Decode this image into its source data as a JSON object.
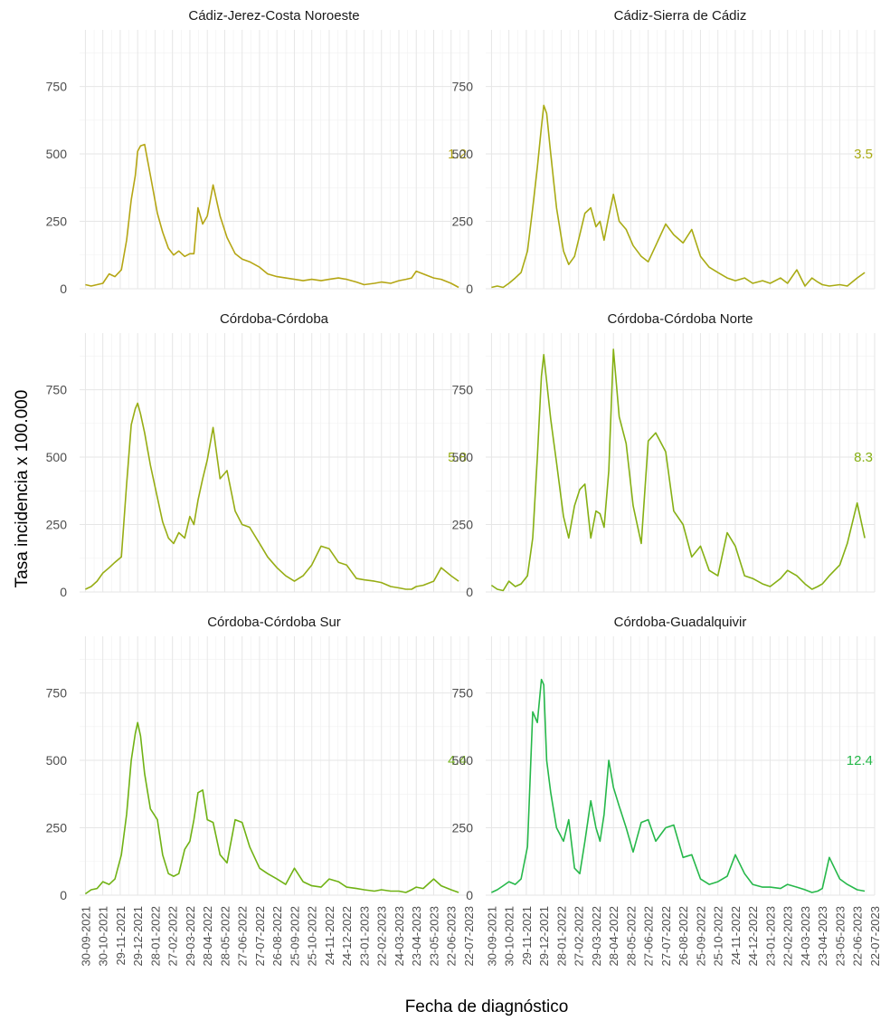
{
  "chart_data": {
    "type": "line",
    "xlabel": "Fecha de diagnóstico",
    "ylabel": "Tasa incidencia x 100.000",
    "ylim": [
      0,
      960
    ],
    "y_ticks": [
      0,
      250,
      500,
      750
    ],
    "x_range": [
      "2021-09-20",
      "2023-07-22"
    ],
    "x_tick_labels": [
      "30-09-2021",
      "30-10-2021",
      "29-11-2021",
      "29-12-2021",
      "28-01-2022",
      "27-02-2022",
      "29-03-2022",
      "28-04-2022",
      "28-05-2022",
      "27-06-2022",
      "27-07-2022",
      "26-08-2022",
      "25-09-2022",
      "25-10-2022",
      "24-11-2022",
      "24-12-2022",
      "23-01-2023",
      "22-02-2023",
      "24-03-2023",
      "23-04-2023",
      "23-05-2023",
      "22-06-2023",
      "22-07-2023"
    ],
    "x_tick_dates": [
      "2021-09-30",
      "2021-10-30",
      "2021-11-29",
      "2021-12-29",
      "2022-01-28",
      "2022-02-27",
      "2022-03-29",
      "2022-04-28",
      "2022-05-28",
      "2022-06-27",
      "2022-07-27",
      "2022-08-26",
      "2022-09-25",
      "2022-10-25",
      "2022-11-24",
      "2022-12-24",
      "2023-01-23",
      "2023-02-22",
      "2023-03-24",
      "2023-04-23",
      "2023-05-23",
      "2023-06-22",
      "2023-07-22"
    ],
    "grid": true,
    "legend": "none",
    "facets": [
      {
        "title": "Cádiz-Jerez-Costa Noroeste",
        "annotation": "1.2",
        "color": "#b5a614",
        "x": [
          "2021-09-30",
          "2021-10-10",
          "2021-10-20",
          "2021-10-30",
          "2021-11-10",
          "2021-11-20",
          "2021-12-01",
          "2021-12-10",
          "2021-12-18",
          "2021-12-25",
          "2021-12-29",
          "2022-01-03",
          "2022-01-10",
          "2022-01-20",
          "2022-02-01",
          "2022-02-10",
          "2022-02-20",
          "2022-03-01",
          "2022-03-10",
          "2022-03-20",
          "2022-03-29",
          "2022-04-05",
          "2022-04-12",
          "2022-04-20",
          "2022-04-28",
          "2022-05-08",
          "2022-05-20",
          "2022-06-01",
          "2022-06-15",
          "2022-06-27",
          "2022-07-10",
          "2022-07-27",
          "2022-08-10",
          "2022-08-26",
          "2022-09-10",
          "2022-09-25",
          "2022-10-10",
          "2022-10-25",
          "2022-11-10",
          "2022-11-24",
          "2022-12-10",
          "2022-12-24",
          "2023-01-10",
          "2023-01-23",
          "2023-02-10",
          "2023-02-22",
          "2023-03-10",
          "2023-03-24",
          "2023-04-05",
          "2023-04-15",
          "2023-04-23",
          "2023-05-05",
          "2023-05-23",
          "2023-06-05",
          "2023-06-22",
          "2023-07-05"
        ],
        "y": [
          15,
          10,
          15,
          20,
          55,
          45,
          70,
          180,
          330,
          420,
          510,
          530,
          535,
          420,
          280,
          210,
          150,
          125,
          140,
          120,
          130,
          130,
          300,
          240,
          270,
          385,
          270,
          190,
          130,
          110,
          100,
          80,
          55,
          45,
          40,
          35,
          30,
          35,
          30,
          35,
          40,
          35,
          25,
          15,
          20,
          25,
          20,
          30,
          35,
          40,
          65,
          55,
          40,
          35,
          20,
          5
        ]
      },
      {
        "title": "Cádiz-Sierra de Cádiz",
        "annotation": "3.5",
        "color": "#a9ab14",
        "x": [
          "2021-09-30",
          "2021-10-10",
          "2021-10-20",
          "2021-10-30",
          "2021-11-10",
          "2021-11-20",
          "2021-12-01",
          "2021-12-10",
          "2021-12-18",
          "2021-12-25",
          "2021-12-29",
          "2022-01-03",
          "2022-01-10",
          "2022-01-20",
          "2022-02-01",
          "2022-02-10",
          "2022-02-20",
          "2022-03-01",
          "2022-03-10",
          "2022-03-20",
          "2022-03-29",
          "2022-04-05",
          "2022-04-12",
          "2022-04-20",
          "2022-04-28",
          "2022-05-08",
          "2022-05-20",
          "2022-06-01",
          "2022-06-15",
          "2022-06-27",
          "2022-07-10",
          "2022-07-27",
          "2022-08-10",
          "2022-08-26",
          "2022-09-10",
          "2022-09-25",
          "2022-10-10",
          "2022-10-25",
          "2022-11-10",
          "2022-11-24",
          "2022-12-10",
          "2022-12-24",
          "2023-01-10",
          "2023-01-23",
          "2023-02-10",
          "2023-02-22",
          "2023-03-10",
          "2023-03-24",
          "2023-04-05",
          "2023-04-15",
          "2023-04-23",
          "2023-05-05",
          "2023-05-23",
          "2023-06-05",
          "2023-06-22",
          "2023-07-05"
        ],
        "y": [
          5,
          10,
          5,
          20,
          40,
          60,
          140,
          300,
          450,
          600,
          680,
          650,
          500,
          300,
          140,
          90,
          120,
          200,
          280,
          300,
          230,
          250,
          180,
          270,
          350,
          250,
          220,
          160,
          120,
          100,
          160,
          240,
          200,
          170,
          220,
          120,
          80,
          60,
          40,
          30,
          40,
          20,
          30,
          20,
          40,
          20,
          70,
          10,
          40,
          25,
          15,
          10,
          15,
          10,
          40,
          60
        ]
      },
      {
        "title": "Córdoba-Córdoba",
        "annotation": "5.8",
        "color": "#97ad14",
        "x": [
          "2021-09-30",
          "2021-10-10",
          "2021-10-20",
          "2021-10-30",
          "2021-11-10",
          "2021-11-20",
          "2021-12-01",
          "2021-12-10",
          "2021-12-18",
          "2021-12-25",
          "2021-12-29",
          "2022-01-03",
          "2022-01-10",
          "2022-01-20",
          "2022-02-01",
          "2022-02-10",
          "2022-02-20",
          "2022-03-01",
          "2022-03-10",
          "2022-03-20",
          "2022-03-29",
          "2022-04-05",
          "2022-04-12",
          "2022-04-20",
          "2022-04-28",
          "2022-05-08",
          "2022-05-20",
          "2022-06-01",
          "2022-06-15",
          "2022-06-27",
          "2022-07-10",
          "2022-07-27",
          "2022-08-10",
          "2022-08-26",
          "2022-09-10",
          "2022-09-25",
          "2022-10-10",
          "2022-10-25",
          "2022-11-10",
          "2022-11-24",
          "2022-12-10",
          "2022-12-24",
          "2023-01-10",
          "2023-01-23",
          "2023-02-10",
          "2023-02-22",
          "2023-03-10",
          "2023-03-24",
          "2023-04-05",
          "2023-04-15",
          "2023-04-23",
          "2023-05-05",
          "2023-05-23",
          "2023-06-05",
          "2023-06-22",
          "2023-07-05"
        ],
        "y": [
          10,
          20,
          40,
          70,
          90,
          110,
          130,
          400,
          620,
          680,
          700,
          660,
          590,
          470,
          350,
          260,
          200,
          180,
          220,
          200,
          280,
          250,
          340,
          420,
          490,
          610,
          420,
          450,
          300,
          250,
          240,
          180,
          130,
          90,
          60,
          40,
          60,
          100,
          170,
          160,
          110,
          100,
          50,
          45,
          40,
          35,
          20,
          15,
          10,
          10,
          20,
          25,
          40,
          90,
          60,
          40
        ]
      },
      {
        "title": "Córdoba-Córdoba Norte",
        "annotation": "8.3",
        "color": "#86b014",
        "x": [
          "2021-09-30",
          "2021-10-10",
          "2021-10-20",
          "2021-10-30",
          "2021-11-10",
          "2021-11-20",
          "2021-12-01",
          "2021-12-10",
          "2021-12-18",
          "2021-12-25",
          "2021-12-29",
          "2022-01-03",
          "2022-01-10",
          "2022-01-20",
          "2022-02-01",
          "2022-02-10",
          "2022-02-20",
          "2022-03-01",
          "2022-03-10",
          "2022-03-20",
          "2022-03-29",
          "2022-04-05",
          "2022-04-12",
          "2022-04-20",
          "2022-04-28",
          "2022-05-08",
          "2022-05-20",
          "2022-06-01",
          "2022-06-15",
          "2022-06-27",
          "2022-07-10",
          "2022-07-27",
          "2022-08-10",
          "2022-08-26",
          "2022-09-10",
          "2022-09-25",
          "2022-10-10",
          "2022-10-25",
          "2022-11-10",
          "2022-11-24",
          "2022-12-10",
          "2022-12-24",
          "2023-01-10",
          "2023-01-23",
          "2023-02-10",
          "2023-02-22",
          "2023-03-10",
          "2023-03-24",
          "2023-04-05",
          "2023-04-15",
          "2023-04-23",
          "2023-05-05",
          "2023-05-23",
          "2023-06-05",
          "2023-06-22",
          "2023-07-05"
        ],
        "y": [
          25,
          10,
          5,
          40,
          20,
          30,
          60,
          200,
          500,
          800,
          880,
          780,
          640,
          480,
          280,
          200,
          320,
          380,
          400,
          200,
          300,
          290,
          240,
          450,
          900,
          650,
          550,
          320,
          180,
          560,
          590,
          520,
          300,
          250,
          130,
          170,
          80,
          60,
          220,
          170,
          60,
          50,
          30,
          20,
          50,
          80,
          60,
          30,
          10,
          20,
          30,
          60,
          100,
          180,
          330,
          200
        ]
      },
      {
        "title": "Córdoba-Córdoba Sur",
        "annotation": "4.4",
        "color": "#70b214",
        "x": [
          "2021-09-30",
          "2021-10-10",
          "2021-10-20",
          "2021-10-30",
          "2021-11-10",
          "2021-11-20",
          "2021-12-01",
          "2021-12-10",
          "2021-12-18",
          "2021-12-25",
          "2021-12-29",
          "2022-01-03",
          "2022-01-10",
          "2022-01-20",
          "2022-02-01",
          "2022-02-10",
          "2022-02-20",
          "2022-03-01",
          "2022-03-10",
          "2022-03-20",
          "2022-03-29",
          "2022-04-05",
          "2022-04-12",
          "2022-04-20",
          "2022-04-28",
          "2022-05-08",
          "2022-05-20",
          "2022-06-01",
          "2022-06-15",
          "2022-06-27",
          "2022-07-10",
          "2022-07-27",
          "2022-08-10",
          "2022-08-26",
          "2022-09-10",
          "2022-09-25",
          "2022-10-10",
          "2022-10-25",
          "2022-11-10",
          "2022-11-24",
          "2022-12-10",
          "2022-12-24",
          "2023-01-10",
          "2023-01-23",
          "2023-02-10",
          "2023-02-22",
          "2023-03-10",
          "2023-03-24",
          "2023-04-05",
          "2023-04-15",
          "2023-04-23",
          "2023-05-05",
          "2023-05-23",
          "2023-06-05",
          "2023-06-22",
          "2023-07-05"
        ],
        "y": [
          5,
          20,
          25,
          50,
          40,
          60,
          150,
          300,
          500,
          600,
          640,
          590,
          450,
          320,
          280,
          150,
          80,
          70,
          80,
          170,
          200,
          280,
          380,
          390,
          280,
          270,
          150,
          120,
          280,
          270,
          180,
          100,
          80,
          60,
          40,
          100,
          50,
          35,
          30,
          60,
          50,
          30,
          25,
          20,
          15,
          20,
          15,
          15,
          10,
          20,
          30,
          25,
          60,
          35,
          20,
          10
        ]
      },
      {
        "title": "Córdoba-Guadalquivir",
        "annotation": "12.4",
        "color": "#26b84a",
        "x": [
          "2021-09-30",
          "2021-10-10",
          "2021-10-20",
          "2021-10-30",
          "2021-11-10",
          "2021-11-20",
          "2021-12-01",
          "2021-12-10",
          "2021-12-18",
          "2021-12-25",
          "2021-12-29",
          "2022-01-03",
          "2022-01-10",
          "2022-01-20",
          "2022-02-01",
          "2022-02-10",
          "2022-02-20",
          "2022-03-01",
          "2022-03-10",
          "2022-03-20",
          "2022-03-29",
          "2022-04-05",
          "2022-04-12",
          "2022-04-20",
          "2022-04-28",
          "2022-05-08",
          "2022-05-20",
          "2022-06-01",
          "2022-06-15",
          "2022-06-27",
          "2022-07-10",
          "2022-07-27",
          "2022-08-10",
          "2022-08-26",
          "2022-09-10",
          "2022-09-25",
          "2022-10-10",
          "2022-10-25",
          "2022-11-10",
          "2022-11-24",
          "2022-12-10",
          "2022-12-24",
          "2023-01-10",
          "2023-01-23",
          "2023-02-10",
          "2023-02-22",
          "2023-03-10",
          "2023-03-24",
          "2023-04-05",
          "2023-04-15",
          "2023-04-23",
          "2023-05-05",
          "2023-05-23",
          "2023-06-05",
          "2023-06-22",
          "2023-07-05"
        ],
        "y": [
          10,
          20,
          35,
          50,
          40,
          60,
          180,
          680,
          640,
          800,
          780,
          500,
          380,
          250,
          200,
          280,
          100,
          80,
          200,
          350,
          250,
          200,
          300,
          500,
          400,
          330,
          250,
          160,
          270,
          280,
          200,
          250,
          260,
          140,
          150,
          60,
          40,
          50,
          70,
          150,
          80,
          40,
          30,
          30,
          25,
          40,
          30,
          20,
          10,
          15,
          25,
          140,
          60,
          40,
          20,
          15
        ]
      }
    ]
  }
}
